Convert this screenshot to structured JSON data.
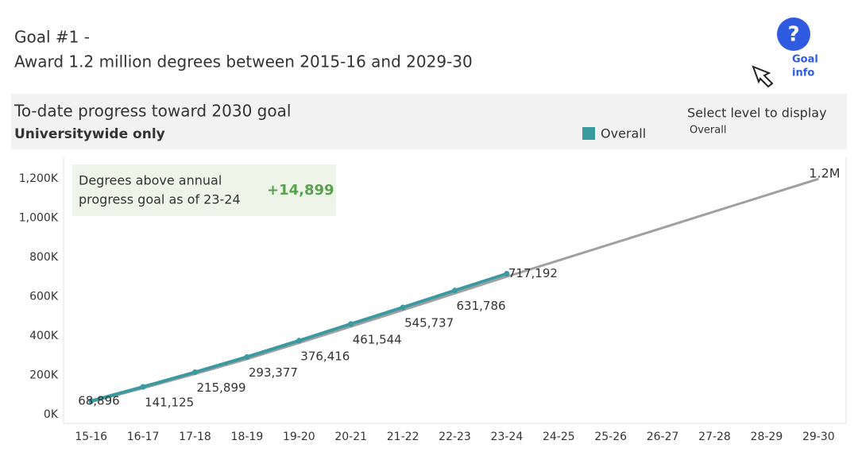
{
  "header": {
    "title_line1": "Goal #1 -",
    "title_line2": "Award 1.2 million degrees between 2015-16 and 2029-30",
    "info_icon": "?",
    "info_line1": "Goal",
    "info_line2": "info"
  },
  "panel": {
    "title": "To-date progress toward 2030 goal",
    "subtitle": "Universitywide only",
    "selector_label": "Select level to display",
    "selector_value": "Overall"
  },
  "chart_data": {
    "type": "line",
    "categories": [
      "15-16",
      "16-17",
      "17-18",
      "18-19",
      "19-20",
      "20-21",
      "21-22",
      "22-23",
      "23-24",
      "24-25",
      "25-26",
      "26-27",
      "27-28",
      "28-29",
      "29-30"
    ],
    "series": [
      {
        "name": "Overall",
        "color": "#3a9aa0",
        "values": [
          68896,
          141125,
          215899,
          293377,
          376416,
          461544,
          545737,
          631786,
          717192,
          null,
          null,
          null,
          null,
          null,
          null
        ],
        "value_labels": [
          "68,896",
          "141,125",
          "215,899",
          "293,377",
          "376,416",
          "461,544",
          "545,737",
          "631,786",
          "717,192",
          null,
          null,
          null,
          null,
          null,
          null
        ]
      }
    ],
    "goal_line": {
      "color": "#a0a0a0",
      "values": [
        65000,
        135000,
        207000,
        283000,
        365000,
        448000,
        532000,
        617000,
        702293,
        785000,
        868000,
        951000,
        1034000,
        1117000,
        1200000
      ],
      "end_label": "1.2M"
    },
    "annotation": {
      "lines": [
        "Degrees above annual",
        "progress goal as of 23-24"
      ],
      "value_label": "+14,899",
      "value": 14899
    },
    "ylim": [
      -45000,
      1310000
    ],
    "yticks": [
      {
        "value": 0,
        "label": "0K"
      },
      {
        "value": 200000,
        "label": "200K"
      },
      {
        "value": 400000,
        "label": "400K"
      },
      {
        "value": 600000,
        "label": "600K"
      },
      {
        "value": 800000,
        "label": "800K"
      },
      {
        "value": 1000000,
        "label": "1,000K"
      },
      {
        "value": 1200000,
        "label": "1,200K"
      }
    ],
    "grid": false
  }
}
